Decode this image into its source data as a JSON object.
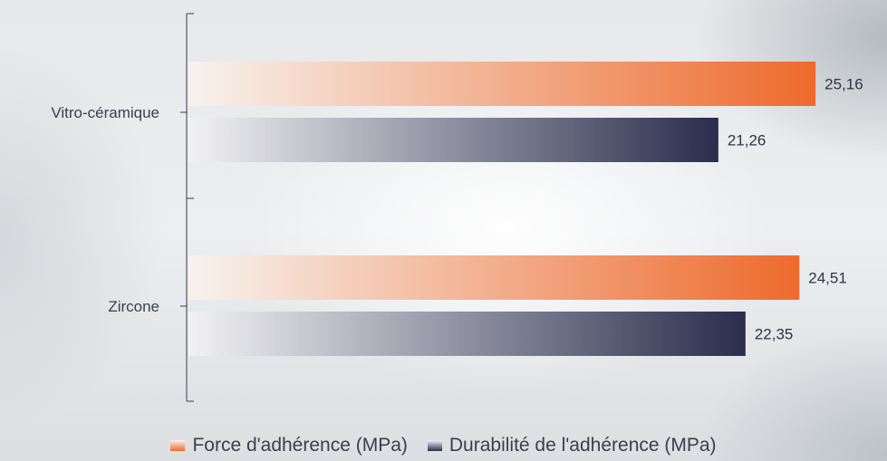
{
  "chart_data": {
    "type": "bar",
    "orientation": "horizontal",
    "categories": [
      "Vitro-céramique",
      "Zircone"
    ],
    "series": [
      {
        "name": "Force d'adhérence (MPa)",
        "values": [
          25.16,
          24.51
        ],
        "value_labels": [
          "25,16",
          "24,51"
        ],
        "color": "#ee6a2c"
      },
      {
        "name": "Durabilité de l'adhérence (MPa)",
        "values": [
          21.26,
          22.35
        ],
        "value_labels": [
          "21,26",
          "22,35"
        ],
        "color": "#2a2d4c"
      }
    ],
    "xlim": [
      0,
      26.5
    ],
    "grid": false,
    "legend_position": "bottom"
  }
}
